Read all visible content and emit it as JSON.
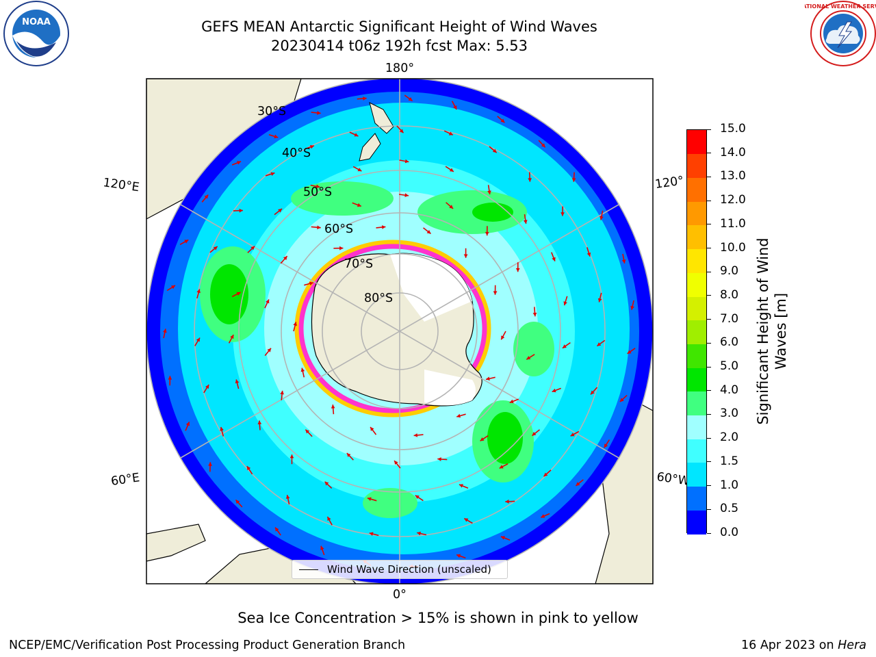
{
  "title": {
    "line1": "GEFS MEAN Antarctic Significant Height of Wind Waves",
    "line2": "20230414 t06z 192h fcst   Max: 5.53"
  },
  "logos": {
    "left": {
      "icon": "noaa-logo",
      "text": "NOAA"
    },
    "right": {
      "icon": "nws-logo",
      "text": "NATIONAL WEATHER SERVICE"
    }
  },
  "map": {
    "projection": "south-polar-stereographic",
    "longitude_labels": {
      "top": "180°",
      "bottom": "0°",
      "upper_left": "120°E",
      "upper_right": "120°",
      "lower_left": "60°E",
      "lower_right": "60°W"
    },
    "latitude_labels": [
      "30°S",
      "40°S",
      "50°S",
      "60°S",
      "70°S",
      "80°S"
    ],
    "colors": {
      "land": "#efedd9",
      "ice_edge": [
        "#ff33cc",
        "#ffcc00"
      ],
      "arrow": "#e00000",
      "grid": "#b4b4b4"
    },
    "legend": {
      "label": "Wind Wave Direction (unscaled)"
    }
  },
  "colorbar": {
    "title": "Significant Height of Wind Waves [m]",
    "ticks": [
      "0.0",
      "0.5",
      "1.0",
      "1.5",
      "2.0",
      "3.0",
      "4.0",
      "5.0",
      "6.0",
      "7.0",
      "8.0",
      "9.0",
      "10.0",
      "11.0",
      "12.0",
      "13.0",
      "14.0",
      "15.0"
    ],
    "colors": [
      "#0000ff",
      "#0070ff",
      "#00e6ff",
      "#40ffff",
      "#a0ffff",
      "#40ff80",
      "#00e600",
      "#40e600",
      "#a0ee00",
      "#d4f000",
      "#f0ff00",
      "#ffe600",
      "#ffbf00",
      "#ff9900",
      "#ff7000",
      "#ff4000",
      "#ff0000"
    ]
  },
  "caption": "Sea Ice Concentration > 15% is shown in pink to yellow",
  "footer": {
    "left": "NCEP/EMC/Verification Post Processing Product Generation Branch",
    "right_date": "16 Apr 2023 on ",
    "right_host": "Hera"
  }
}
